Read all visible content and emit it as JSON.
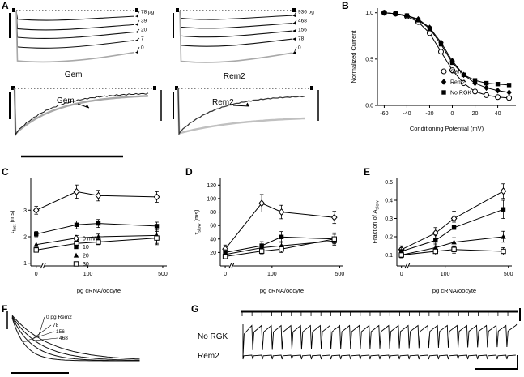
{
  "panel_labels": {
    "A": "A",
    "B": "B",
    "C": "C",
    "D": "D",
    "E": "E",
    "F": "F",
    "G": "G"
  },
  "panelA": {
    "gem_top": {
      "title": "Gem",
      "trace_labels": [
        "78 pg",
        "39",
        "20",
        "7",
        "0"
      ],
      "depths": [
        0.16,
        0.34,
        0.5,
        0.68,
        0.94
      ],
      "gray_last": true
    },
    "rem2_top": {
      "title": "Rem2",
      "trace_labels": [
        "936 pg",
        "468",
        "156",
        "78",
        "0"
      ],
      "depths": [
        0.14,
        0.3,
        0.46,
        0.63,
        0.92
      ],
      "gray_last": true
    },
    "gem_bottom": {
      "title": "Gem"
    },
    "rem2_bottom": {
      "title": "Rem2"
    }
  },
  "panelF": {
    "trace_labels": [
      "0 pg Rem2",
      "78",
      "156",
      "468"
    ]
  },
  "panelG": {
    "top_label": "No RGK",
    "bottom_label": "Rem2"
  },
  "chart_data": [
    {
      "id": "B",
      "type": "line",
      "x": [
        -60,
        -50,
        -40,
        -30,
        -20,
        -10,
        0,
        10,
        20,
        30,
        40,
        50
      ],
      "series": [
        {
          "name": "Gem",
          "symbol": "circle-open",
          "values": [
            1.0,
            0.99,
            0.96,
            0.9,
            0.78,
            0.58,
            0.38,
            0.24,
            0.15,
            0.11,
            0.09,
            0.08
          ]
        },
        {
          "name": "Rem2",
          "symbol": "diamond-filled",
          "values": [
            1.0,
            0.99,
            0.97,
            0.93,
            0.84,
            0.68,
            0.48,
            0.33,
            0.24,
            0.19,
            0.16,
            0.14
          ]
        },
        {
          "name": "No RGK",
          "symbol": "square-filled",
          "values": [
            1.0,
            0.99,
            0.97,
            0.92,
            0.83,
            0.66,
            0.46,
            0.33,
            0.27,
            0.24,
            0.23,
            0.22
          ]
        }
      ],
      "xlabel": "Conditioning Potential (mV)",
      "ylabel": "Normalized Current",
      "xlim": [
        -66,
        56
      ],
      "ylim": [
        0,
        1.05
      ],
      "xticks": [
        -60,
        -40,
        -20,
        0,
        20,
        40
      ],
      "xtick_labels": [
        "-60",
        "-40",
        "-20",
        "0",
        "20",
        "40"
      ],
      "yticks": [
        0,
        0.5,
        1.0
      ],
      "ytick_labels": [
        "0.0",
        "0.5",
        "1.0"
      ],
      "legend": true
    },
    {
      "id": "C",
      "type": "line",
      "x": [
        0,
        78,
        156,
        468
      ],
      "series": [
        {
          "name": "0 mV",
          "symbol": "diamond-open",
          "values": [
            3.0,
            3.7,
            3.55,
            3.5
          ],
          "errors": [
            0.15,
            0.25,
            0.2,
            0.2
          ]
        },
        {
          "name": "10",
          "symbol": "square-filled",
          "values": [
            2.1,
            2.45,
            2.5,
            2.4
          ],
          "errors": [
            0.1,
            0.15,
            0.15,
            0.15
          ]
        },
        {
          "name": "20",
          "symbol": "triangle-filled",
          "values": [
            1.7,
            1.95,
            2.0,
            2.05
          ],
          "errors": [
            0.1,
            0.1,
            0.1,
            0.3
          ]
        },
        {
          "name": "30",
          "symbol": "square-open",
          "values": [
            1.5,
            1.75,
            1.8,
            1.95
          ],
          "errors": [
            0.08,
            0.1,
            0.1,
            0.25
          ]
        }
      ],
      "xlabel": "pg cRNA/oocyte",
      "ylabel": {
        "pre": "τ",
        "sub": "fast",
        "post": " (ms)"
      },
      "xlim": [
        0,
        500
      ],
      "ylim": [
        0.9,
        4.2
      ],
      "xmap": [
        [
          0,
          0.04
        ],
        [
          100,
          0.42
        ],
        [
          500,
          0.97
        ]
      ],
      "xticks": [
        0,
        100,
        500
      ],
      "xtick_labels": [
        "0",
        "100",
        "500"
      ],
      "yticks": [
        1,
        2,
        3
      ],
      "ytick_labels": [
        "1",
        "2",
        "3"
      ],
      "legend": true
    },
    {
      "id": "D",
      "type": "line",
      "x": [
        0,
        78,
        156,
        468
      ],
      "series": [
        {
          "name": "0 mV",
          "symbol": "diamond-open",
          "values": [
            25,
            93,
            80,
            72
          ],
          "errors": [
            6,
            13,
            10,
            9
          ]
        },
        {
          "name": "10",
          "symbol": "square-filled",
          "values": [
            20,
            30,
            43,
            40
          ],
          "errors": [
            4,
            6,
            8,
            7
          ]
        },
        {
          "name": "20",
          "symbol": "triangle-filled",
          "values": [
            17,
            27,
            30,
            37
          ],
          "errors": [
            4,
            5,
            6,
            6
          ]
        },
        {
          "name": "30",
          "symbol": "square-open",
          "values": [
            14,
            22,
            25,
            40
          ],
          "errors": [
            3,
            4,
            5,
            9
          ]
        }
      ],
      "xlabel": "pg cRNA/oocyte",
      "ylabel": {
        "pre": "τ",
        "sub": "slow",
        "post": " (ms)"
      },
      "xlim": [
        0,
        500
      ],
      "ylim": [
        0,
        130
      ],
      "xmap": [
        [
          0,
          0.04
        ],
        [
          100,
          0.42
        ],
        [
          500,
          0.97
        ]
      ],
      "xticks": [
        0,
        100,
        500
      ],
      "xtick_labels": [
        "0",
        "100",
        "500"
      ],
      "yticks": [
        20,
        40,
        60,
        80,
        100,
        120
      ],
      "ytick_labels": [
        "20",
        "40",
        "60",
        "80",
        "100",
        "120"
      ],
      "legend": false
    },
    {
      "id": "E",
      "type": "line",
      "x": [
        0,
        78,
        156,
        468
      ],
      "series": [
        {
          "name": "0 mV",
          "symbol": "diamond-open",
          "values": [
            0.13,
            0.22,
            0.3,
            0.45
          ],
          "errors": [
            0.02,
            0.03,
            0.04,
            0.04
          ]
        },
        {
          "name": "10",
          "symbol": "square-filled",
          "values": [
            0.12,
            0.18,
            0.25,
            0.35
          ],
          "errors": [
            0.02,
            0.03,
            0.03,
            0.05
          ]
        },
        {
          "name": "20",
          "symbol": "triangle-filled",
          "values": [
            0.1,
            0.14,
            0.17,
            0.2
          ],
          "errors": [
            0.015,
            0.02,
            0.025,
            0.03
          ]
        },
        {
          "name": "30",
          "symbol": "square-open",
          "values": [
            0.1,
            0.12,
            0.13,
            0.12
          ],
          "errors": [
            0.015,
            0.02,
            0.02,
            0.02
          ]
        }
      ],
      "xlabel": "pg cRNA/oocyte",
      "ylabel": {
        "pre": "Fraction of A",
        "sub": "slow",
        "post": ""
      },
      "xlim": [
        0,
        500
      ],
      "ylim": [
        0.04,
        0.52
      ],
      "xmap": [
        [
          0,
          0.04
        ],
        [
          100,
          0.42
        ],
        [
          500,
          0.97
        ]
      ],
      "xticks": [
        0,
        100,
        500
      ],
      "xtick_labels": [
        "0",
        "100",
        "500"
      ],
      "yticks": [
        0.1,
        0.2,
        0.3,
        0.4,
        0.5
      ],
      "ytick_labels": [
        "0.1",
        "0.2",
        "0.3",
        "0.4",
        "0.5"
      ],
      "legend": false
    }
  ]
}
